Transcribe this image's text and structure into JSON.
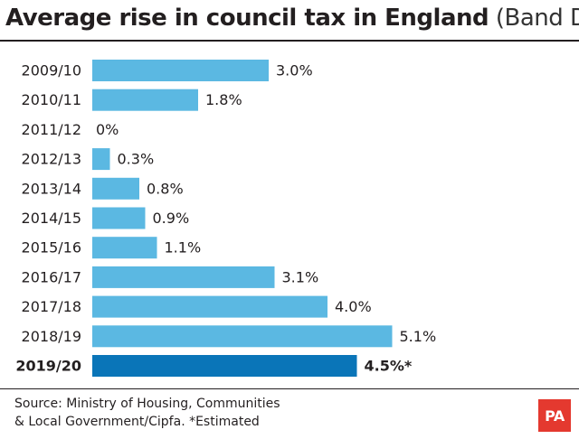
{
  "header": {
    "title_main": "Average rise in council tax in England",
    "title_sub": "(Band D)"
  },
  "chart_data": {
    "type": "bar",
    "orientation": "horizontal",
    "title": "Average rise in council tax in England (Band D)",
    "categories": [
      "2009/10",
      "2010/11",
      "2011/12",
      "2012/13",
      "2013/14",
      "2014/15",
      "2015/16",
      "2016/17",
      "2017/18",
      "2018/19",
      "2019/20"
    ],
    "values": [
      3.0,
      1.8,
      0,
      0.3,
      0.8,
      0.9,
      1.1,
      3.1,
      4.0,
      5.1,
      4.5
    ],
    "labels": [
      "3.0%",
      "1.8%",
      "0%",
      "0.3%",
      "0.8%",
      "0.9%",
      "1.1%",
      "3.1%",
      "4.0%",
      "5.1%",
      "4.5%*"
    ],
    "highlight_index": 10,
    "unit": "%",
    "xlim": [
      0,
      5.1
    ],
    "xlabel": "",
    "ylabel": "",
    "colors": {
      "bar": "#5bb8e2",
      "highlight": "#0a75b8"
    }
  },
  "footer": {
    "source_line1": "Source: Ministry of Housing, Communities",
    "source_line2": "& Local Government/Cipfa. *Estimated",
    "logo": "PA"
  }
}
